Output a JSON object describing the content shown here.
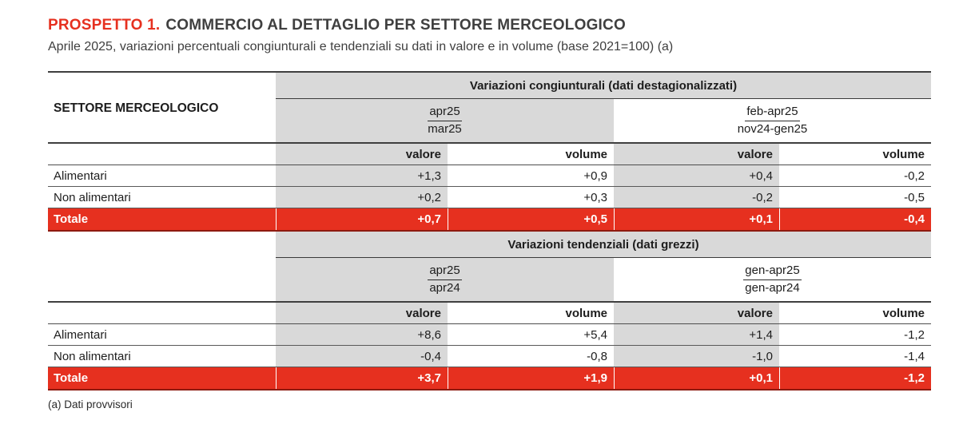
{
  "header": {
    "label": "PROSPETTO 1.",
    "title": "COMMERCIO AL DETTAGLIO PER SETTORE MERCEOLOGICO",
    "subtitle": "Aprile 2025, variazioni percentuali congiunturali e tendenziali su dati in valore e in volume (base 2021=100) (a)"
  },
  "colors": {
    "accent_red": "#e6301f",
    "header_gray": "#d9d9d9"
  },
  "table": {
    "row_header": "SETTORE MERCEOLOGICO",
    "sections": [
      {
        "title": "Variazioni congiunturali (dati destagionalizzati)",
        "groups": [
          {
            "num": "apr25",
            "den": "mar25"
          },
          {
            "num": "feb-apr25",
            "den": "nov24-gen25"
          }
        ],
        "measures": [
          "valore",
          "volume",
          "valore",
          "volume"
        ],
        "rows": [
          {
            "label": "Alimentari",
            "values": [
              "+1,3",
              "+0,9",
              "+0,4",
              "-0,2"
            ]
          },
          {
            "label": "Non alimentari",
            "values": [
              "+0,2",
              "+0,3",
              "-0,2",
              "-0,5"
            ]
          },
          {
            "label": "Totale",
            "values": [
              "+0,7",
              "+0,5",
              "+0,1",
              "-0,4"
            ]
          }
        ]
      },
      {
        "title": "Variazioni tendenziali (dati grezzi)",
        "groups": [
          {
            "num": "apr25",
            "den": "apr24"
          },
          {
            "num": "gen-apr25",
            "den": "gen-apr24"
          }
        ],
        "measures": [
          "valore",
          "volume",
          "valore",
          "volume"
        ],
        "rows": [
          {
            "label": "Alimentari",
            "values": [
              "+8,6",
              "+5,4",
              "+1,4",
              "-1,2"
            ]
          },
          {
            "label": "Non alimentari",
            "values": [
              "-0,4",
              "-0,8",
              "-1,0",
              "-1,4"
            ]
          },
          {
            "label": "Totale",
            "values": [
              "+3,7",
              "+1,9",
              "+0,1",
              "-1,2"
            ]
          }
        ]
      }
    ],
    "footnote": "(a) Dati provvisori"
  }
}
